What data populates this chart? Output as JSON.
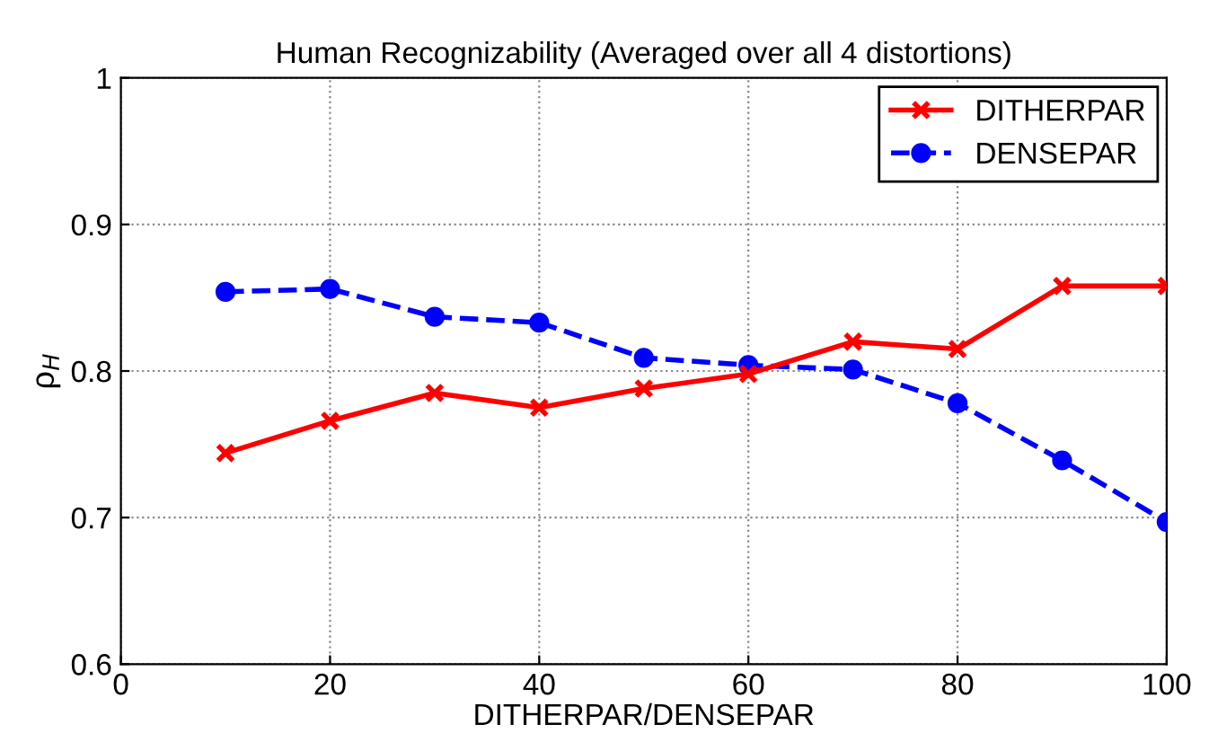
{
  "chart_data": {
    "type": "line",
    "title": "Human Recognizability (Averaged over all 4 distortions)",
    "xlabel": "DITHERPAR/DENSEPAR",
    "ylabel": "ρ$_{H}$",
    "x": [
      10,
      20,
      30,
      40,
      50,
      60,
      70,
      80,
      90,
      100
    ],
    "series": [
      {
        "name": "DITHERPAR",
        "color": "#ff0000",
        "marker": "cross",
        "line_style": "solid",
        "values": [
          0.744,
          0.766,
          0.785,
          0.775,
          0.788,
          0.798,
          0.82,
          0.815,
          0.858,
          0.858
        ]
      },
      {
        "name": "DENSEPAR",
        "color": "#0000ff",
        "marker": "circle",
        "line_style": "dashed",
        "values": [
          0.854,
          0.856,
          0.837,
          0.833,
          0.809,
          0.804,
          0.801,
          0.778,
          0.739,
          0.697
        ]
      }
    ],
    "xlim": [
      0,
      100
    ],
    "xticks": [
      0,
      20,
      40,
      60,
      80,
      100
    ],
    "ylim": [
      0.6,
      1
    ],
    "yticks": [
      0.6,
      0.7,
      0.8,
      0.9,
      1
    ],
    "grid": true,
    "legend": "top right"
  }
}
